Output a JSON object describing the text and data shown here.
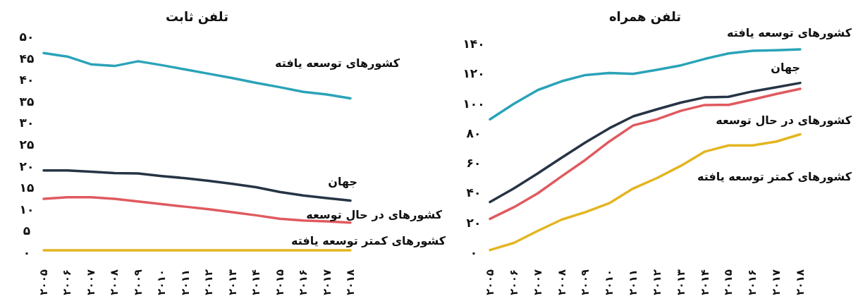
{
  "chart_data": [
    {
      "type": "line",
      "title": "تلفن ثابت",
      "x": [
        2005,
        2006,
        2007,
        2008,
        2009,
        2010,
        2011,
        2012,
        2013,
        2014,
        2015,
        2016,
        2017,
        2018
      ],
      "xlim": [
        2005,
        2018
      ],
      "xticks": [
        {
          "value": 2005,
          "label": "۲۰۰۵"
        },
        {
          "value": 2006,
          "label": "۲۰۰۶"
        },
        {
          "value": 2007,
          "label": "۲۰۰۷"
        },
        {
          "value": 2008,
          "label": "۲۰۰۸"
        },
        {
          "value": 2009,
          "label": "۲۰۰۹"
        },
        {
          "value": 2010,
          "label": "۲۰۱۰"
        },
        {
          "value": 2011,
          "label": "۲۰۱۱"
        },
        {
          "value": 2012,
          "label": "۲۰۱۲"
        },
        {
          "value": 2013,
          "label": "۲۰۱۳"
        },
        {
          "value": 2014,
          "label": "۲۰۱۴"
        },
        {
          "value": 2015,
          "label": "۲۰۱۵"
        },
        {
          "value": 2016,
          "label": "۲۰۱۶"
        },
        {
          "value": 2017,
          "label": "۲۰۱۷"
        },
        {
          "value": 2018,
          "label": "۲۰۱۸"
        }
      ],
      "ylim": [
        0,
        50
      ],
      "yticks": [
        {
          "value": 0,
          "label": "۰"
        },
        {
          "value": 5,
          "label": "۵"
        },
        {
          "value": 10,
          "label": "۱۰"
        },
        {
          "value": 15,
          "label": "۱۵"
        },
        {
          "value": 20,
          "label": "۲۰"
        },
        {
          "value": 25,
          "label": "۲۵"
        },
        {
          "value": 30,
          "label": "۳۰"
        },
        {
          "value": 35,
          "label": "۳۵"
        },
        {
          "value": 40,
          "label": "۴۰"
        },
        {
          "value": 45,
          "label": "۴۵"
        },
        {
          "value": 50,
          "label": "۵۰"
        }
      ],
      "series": [
        {
          "name": "کشورهای توسعه یافته",
          "color": "#2aa3b8",
          "values": [
            46.2,
            45.4,
            43.6,
            43.2,
            44.3,
            43.4,
            42.4,
            41.4,
            40.4,
            39.3,
            38.3,
            37.2,
            36.6,
            35.7
          ]
        },
        {
          "name": "جهان",
          "color": "#263445",
          "values": [
            19,
            19,
            18.7,
            18.4,
            18.3,
            17.7,
            17.2,
            16.6,
            15.9,
            15.1,
            14,
            13.2,
            12.6,
            12
          ]
        },
        {
          "name": "کشورهای در حال توسعه",
          "color": "#e05a5f",
          "values": [
            12.4,
            12.8,
            12.8,
            12.4,
            11.8,
            11.2,
            10.6,
            10,
            9.3,
            8.6,
            7.8,
            7.4,
            7.2,
            6.9
          ]
        },
        {
          "name": "کشورهای کمتر توسعه یافته",
          "color": "#e3b520",
          "values": [
            0.5,
            0.5,
            0.5,
            0.5,
            0.5,
            0.5,
            0.5,
            0.5,
            0.5,
            0.5,
            0.5,
            0.5,
            0.5,
            0.5
          ]
        }
      ]
    },
    {
      "type": "line",
      "title": "تلفن همراه",
      "x": [
        2005,
        2006,
        2007,
        2008,
        2009,
        2010,
        2011,
        2012,
        2013,
        2014,
        2015,
        2016,
        2017,
        2018
      ],
      "xlim": [
        2005,
        2018
      ],
      "xticks": [
        {
          "value": 2005,
          "label": "۲۰۰۵"
        },
        {
          "value": 2006,
          "label": "۲۰۰۶"
        },
        {
          "value": 2007,
          "label": "۲۰۰۷"
        },
        {
          "value": 2008,
          "label": "۲۰۰۸"
        },
        {
          "value": 2009,
          "label": "۲۰۰۹"
        },
        {
          "value": 2010,
          "label": "۲۰۱۰"
        },
        {
          "value": 2011,
          "label": "۲۰۱۱"
        },
        {
          "value": 2012,
          "label": "۲۰۱۲"
        },
        {
          "value": 2013,
          "label": "۲۰۱۳"
        },
        {
          "value": 2014,
          "label": "۲۰۱۴"
        },
        {
          "value": 2015,
          "label": "۲۰۱۵"
        },
        {
          "value": 2016,
          "label": "۲۰۱۶"
        },
        {
          "value": 2017,
          "label": "۲۰۱۷"
        },
        {
          "value": 2018,
          "label": "۲۰۱۸"
        }
      ],
      "ylim": [
        0,
        140
      ],
      "yticks": [
        {
          "value": 0,
          "label": "۰"
        },
        {
          "value": 20,
          "label": "۲۰"
        },
        {
          "value": 40,
          "label": "۴۰"
        },
        {
          "value": 60,
          "label": "۶۰"
        },
        {
          "value": 80,
          "label": "۸۰"
        },
        {
          "value": 100,
          "label": "۱۰۰"
        },
        {
          "value": 120,
          "label": "۱۲۰"
        },
        {
          "value": 140,
          "label": "۱۴۰"
        }
      ],
      "series": [
        {
          "name": "کشورهای توسعه یافته",
          "color": "#2aa3b8",
          "values": [
            89.3,
            99.7,
            108.9,
            114.8,
            119,
            120.4,
            119.8,
            122.5,
            125.5,
            129.8,
            133.5,
            135.3,
            135.6,
            136.2
          ]
        },
        {
          "name": "جهان",
          "color": "#263445",
          "values": [
            33.8,
            42.9,
            53,
            63.5,
            73.8,
            83.3,
            91.3,
            96,
            100.5,
            104,
            104.4,
            108,
            110.8,
            113.7
          ]
        },
        {
          "name": "کشورهای در حال توسعه",
          "color": "#e05a5f",
          "values": [
            22.5,
            30.3,
            39.6,
            51,
            62.1,
            74.4,
            85.2,
            89.3,
            95,
            98.9,
            99,
            102.5,
            106.3,
            109.7
          ]
        },
        {
          "name": "کشورهای کمتر توسعه یافته",
          "color": "#e3b520",
          "values": [
            1.6,
            6.4,
            14.4,
            22,
            27,
            33,
            42.9,
            49.9,
            58.1,
            67.6,
            71.8,
            71.8,
            74.4,
            79.2
          ]
        }
      ]
    }
  ]
}
